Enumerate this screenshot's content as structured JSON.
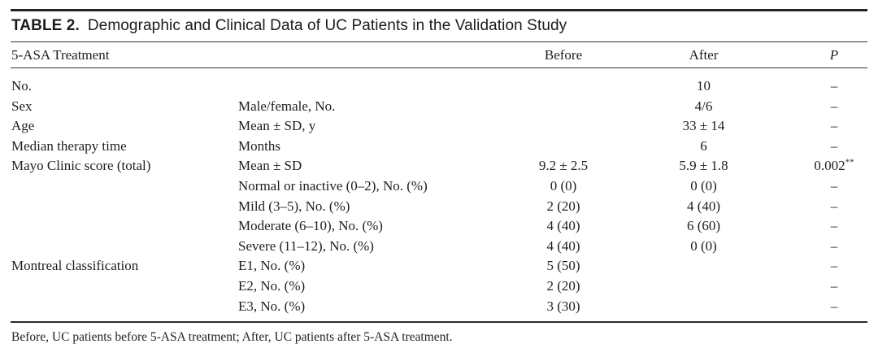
{
  "title": {
    "label": "TABLE 2.",
    "text": "Demographic and Clinical Data of UC Patients in the Validation Study"
  },
  "table": {
    "header": {
      "col1": "5-ASA Treatment",
      "before": "Before",
      "after": "After",
      "p": "P"
    },
    "rows": [
      {
        "label": "No.",
        "sub": "",
        "before": "",
        "after": "10",
        "p": "–"
      },
      {
        "label": "Sex",
        "sub": "Male/female, No.",
        "before": "",
        "after": "4/6",
        "p": "–"
      },
      {
        "label": "Age",
        "sub": "Mean ± SD, y",
        "before": "",
        "after": "33 ± 14",
        "p": "–"
      },
      {
        "label": "Median therapy time",
        "sub": "Months",
        "before": "",
        "after": "6",
        "p": "–"
      },
      {
        "label": "Mayo Clinic score (total)",
        "sub": "Mean ± SD",
        "before": "9.2 ± 2.5",
        "after": "5.9 ± 1.8",
        "p": "0.002",
        "p_sup": "**"
      },
      {
        "label": "",
        "sub": "Normal or inactive (0–2), No. (%)",
        "before": "0 (0)",
        "after": "0 (0)",
        "p": "–"
      },
      {
        "label": "",
        "sub": "Mild (3–5), No. (%)",
        "before": "2 (20)",
        "after": "4 (40)",
        "p": "–"
      },
      {
        "label": "",
        "sub": "Moderate (6–10), No. (%)",
        "before": "4 (40)",
        "after": "6 (60)",
        "p": "–"
      },
      {
        "label": "",
        "sub": "Severe (11–12), No. (%)",
        "before": "4 (40)",
        "after": "0 (0)",
        "p": "–"
      },
      {
        "label": "Montreal classification",
        "sub": "E1, No. (%)",
        "before": "5 (50)",
        "after": "",
        "p": "–"
      },
      {
        "label": "",
        "sub": "E2, No. (%)",
        "before": "2 (20)",
        "after": "",
        "p": "–"
      },
      {
        "label": "",
        "sub": "E3, No. (%)",
        "before": "3 (30)",
        "after": "",
        "p": "–"
      }
    ]
  },
  "footnote": "Before, UC patients before 5-ASA treatment; After, UC patients after 5-ASA treatment."
}
